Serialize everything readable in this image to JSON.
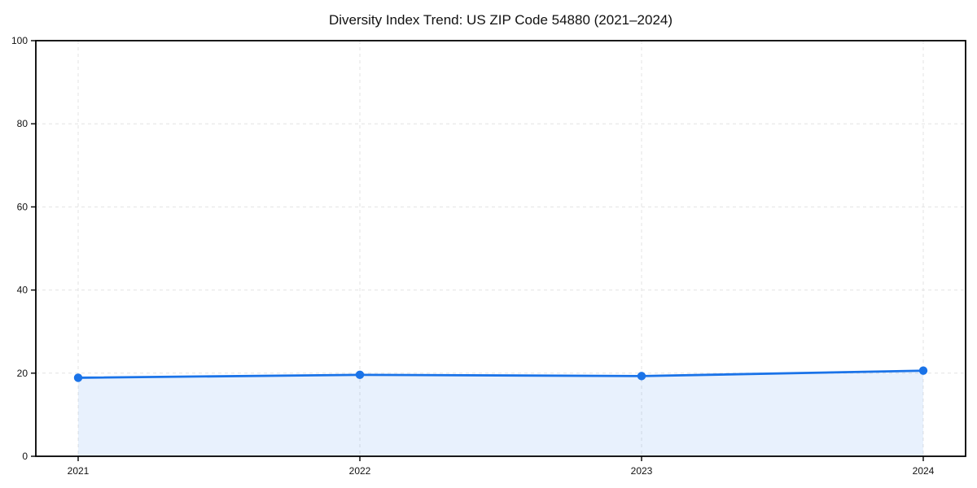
{
  "chart_data": {
    "type": "line",
    "title": "Diversity Index Trend: US ZIP Code 54880 (2021–2024)",
    "x": [
      "2021",
      "2022",
      "2023",
      "2024"
    ],
    "values": [
      18.9,
      19.6,
      19.3,
      20.6
    ],
    "xlabel": "",
    "ylabel": "",
    "ylim": [
      0,
      100
    ],
    "yticks": [
      0,
      20,
      40,
      60,
      80,
      100
    ],
    "grid": true,
    "grid_style": "dashed",
    "legend": "none",
    "area_fill": true,
    "line_color": "#1a73e8",
    "fill_color": "rgba(26,115,232,0.10)",
    "grid_color": "#e3e3e3",
    "axis_color": "#000000",
    "text_color": "#111111"
  }
}
